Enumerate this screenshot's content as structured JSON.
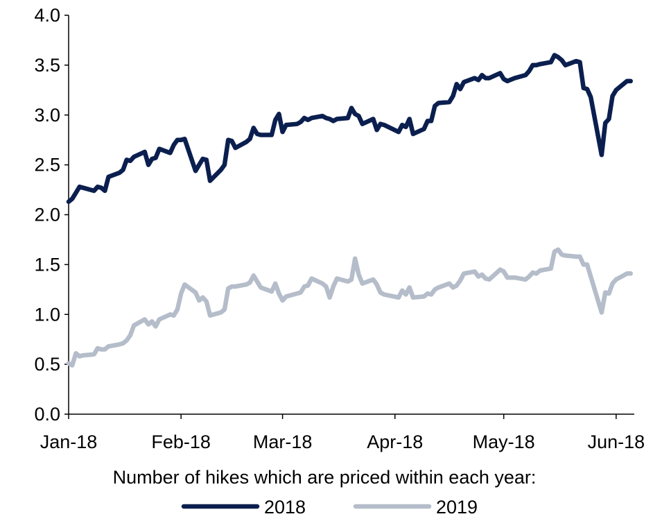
{
  "chart_data": {
    "type": "line",
    "title": "",
    "xlabel": "Number of hikes which are priced within each year:",
    "ylabel": "",
    "ylim": [
      0,
      4
    ],
    "yticks": [
      "0.0",
      "0.5",
      "1.0",
      "1.5",
      "2.0",
      "2.5",
      "3.0",
      "3.5",
      "4.0"
    ],
    "xlim": [
      "2018-01-01",
      "2018-06-06"
    ],
    "xticks": [
      {
        "date": "2018-01-01",
        "label": "Jan-18"
      },
      {
        "date": "2018-02-01",
        "label": "Feb-18"
      },
      {
        "date": "2018-03-01",
        "label": "Mar-18"
      },
      {
        "date": "2018-04-01",
        "label": "Apr-18"
      },
      {
        "date": "2018-05-01",
        "label": "May-18"
      },
      {
        "date": "2018-06-01",
        "label": "Jun-18"
      }
    ],
    "grid": false,
    "legend_position": "bottom",
    "series": [
      {
        "name": "2018",
        "color": "#0b1f4f",
        "points": [
          [
            "2018-01-01",
            2.13
          ],
          [
            "2018-01-02",
            2.16
          ],
          [
            "2018-01-03",
            2.22
          ],
          [
            "2018-01-04",
            2.28
          ],
          [
            "2018-01-05",
            2.27
          ],
          [
            "2018-01-08",
            2.24
          ],
          [
            "2018-01-09",
            2.28
          ],
          [
            "2018-01-10",
            2.27
          ],
          [
            "2018-01-11",
            2.24
          ],
          [
            "2018-01-12",
            2.38
          ],
          [
            "2018-01-15",
            2.42
          ],
          [
            "2018-01-16",
            2.45
          ],
          [
            "2018-01-17",
            2.55
          ],
          [
            "2018-01-18",
            2.54
          ],
          [
            "2018-01-19",
            2.58
          ],
          [
            "2018-01-22",
            2.63
          ],
          [
            "2018-01-23",
            2.5
          ],
          [
            "2018-01-24",
            2.56
          ],
          [
            "2018-01-25",
            2.57
          ],
          [
            "2018-01-26",
            2.66
          ],
          [
            "2018-01-29",
            2.62
          ],
          [
            "2018-01-30",
            2.7
          ],
          [
            "2018-01-31",
            2.75
          ],
          [
            "2018-02-01",
            2.75
          ],
          [
            "2018-02-02",
            2.76
          ],
          [
            "2018-02-05",
            2.44
          ],
          [
            "2018-02-06",
            2.5
          ],
          [
            "2018-02-07",
            2.56
          ],
          [
            "2018-02-08",
            2.55
          ],
          [
            "2018-02-09",
            2.34
          ],
          [
            "2018-02-12",
            2.45
          ],
          [
            "2018-02-13",
            2.5
          ],
          [
            "2018-02-14",
            2.75
          ],
          [
            "2018-02-15",
            2.74
          ],
          [
            "2018-02-16",
            2.67
          ],
          [
            "2018-02-19",
            2.73
          ],
          [
            "2018-02-20",
            2.76
          ],
          [
            "2018-02-21",
            2.87
          ],
          [
            "2018-02-22",
            2.81
          ],
          [
            "2018-02-23",
            2.8
          ],
          [
            "2018-02-26",
            2.8
          ],
          [
            "2018-02-27",
            2.95
          ],
          [
            "2018-02-28",
            3.01
          ],
          [
            "2018-03-01",
            2.83
          ],
          [
            "2018-03-02",
            2.9
          ],
          [
            "2018-03-05",
            2.91
          ],
          [
            "2018-03-06",
            2.93
          ],
          [
            "2018-03-07",
            2.97
          ],
          [
            "2018-03-08",
            2.95
          ],
          [
            "2018-03-09",
            2.97
          ],
          [
            "2018-03-12",
            2.99
          ],
          [
            "2018-03-13",
            2.97
          ],
          [
            "2018-03-14",
            2.96
          ],
          [
            "2018-03-15",
            2.94
          ],
          [
            "2018-03-16",
            2.96
          ],
          [
            "2018-03-19",
            2.97
          ],
          [
            "2018-03-20",
            3.07
          ],
          [
            "2018-03-21",
            3.01
          ],
          [
            "2018-03-22",
            2.99
          ],
          [
            "2018-03-23",
            2.91
          ],
          [
            "2018-03-26",
            2.96
          ],
          [
            "2018-03-27",
            2.85
          ],
          [
            "2018-03-28",
            2.91
          ],
          [
            "2018-03-29",
            2.9
          ],
          [
            "2018-04-02",
            2.83
          ],
          [
            "2018-04-03",
            2.9
          ],
          [
            "2018-04-04",
            2.88
          ],
          [
            "2018-04-05",
            2.96
          ],
          [
            "2018-04-06",
            2.81
          ],
          [
            "2018-04-09",
            2.86
          ],
          [
            "2018-04-10",
            2.94
          ],
          [
            "2018-04-11",
            2.94
          ],
          [
            "2018-04-12",
            3.09
          ],
          [
            "2018-04-13",
            3.12
          ],
          [
            "2018-04-16",
            3.13
          ],
          [
            "2018-04-17",
            3.19
          ],
          [
            "2018-04-18",
            3.31
          ],
          [
            "2018-04-19",
            3.26
          ],
          [
            "2018-04-20",
            3.33
          ],
          [
            "2018-04-23",
            3.37
          ],
          [
            "2018-04-24",
            3.35
          ],
          [
            "2018-04-25",
            3.4
          ],
          [
            "2018-04-26",
            3.37
          ],
          [
            "2018-04-27",
            3.37
          ],
          [
            "2018-04-30",
            3.42
          ],
          [
            "2018-05-01",
            3.36
          ],
          [
            "2018-05-02",
            3.34
          ],
          [
            "2018-05-04",
            3.37
          ],
          [
            "2018-05-07",
            3.4
          ],
          [
            "2018-05-08",
            3.44
          ],
          [
            "2018-05-09",
            3.5
          ],
          [
            "2018-05-10",
            3.5
          ],
          [
            "2018-05-11",
            3.51
          ],
          [
            "2018-05-14",
            3.53
          ],
          [
            "2018-05-15",
            3.6
          ],
          [
            "2018-05-16",
            3.58
          ],
          [
            "2018-05-17",
            3.55
          ],
          [
            "2018-05-18",
            3.5
          ],
          [
            "2018-05-21",
            3.54
          ],
          [
            "2018-05-22",
            3.53
          ],
          [
            "2018-05-23",
            3.27
          ],
          [
            "2018-05-24",
            3.26
          ],
          [
            "2018-05-25",
            3.18
          ],
          [
            "2018-05-28",
            2.6
          ],
          [
            "2018-05-29",
            2.92
          ],
          [
            "2018-05-30",
            2.96
          ],
          [
            "2018-05-31",
            3.19
          ],
          [
            "2018-06-01",
            3.25
          ],
          [
            "2018-06-04",
            3.34
          ],
          [
            "2018-06-05",
            3.34
          ]
        ]
      },
      {
        "name": "2019",
        "color": "#b5bdca",
        "points": [
          [
            "2018-01-01",
            0.51
          ],
          [
            "2018-01-02",
            0.49
          ],
          [
            "2018-01-03",
            0.61
          ],
          [
            "2018-01-04",
            0.58
          ],
          [
            "2018-01-05",
            0.59
          ],
          [
            "2018-01-08",
            0.6
          ],
          [
            "2018-01-09",
            0.66
          ],
          [
            "2018-01-10",
            0.65
          ],
          [
            "2018-01-11",
            0.65
          ],
          [
            "2018-01-12",
            0.68
          ],
          [
            "2018-01-15",
            0.7
          ],
          [
            "2018-01-16",
            0.71
          ],
          [
            "2018-01-17",
            0.74
          ],
          [
            "2018-01-18",
            0.79
          ],
          [
            "2018-01-19",
            0.89
          ],
          [
            "2018-01-22",
            0.95
          ],
          [
            "2018-01-23",
            0.9
          ],
          [
            "2018-01-24",
            0.93
          ],
          [
            "2018-01-25",
            0.88
          ],
          [
            "2018-01-26",
            0.95
          ],
          [
            "2018-01-29",
            1.0
          ],
          [
            "2018-01-30",
            0.99
          ],
          [
            "2018-01-31",
            1.05
          ],
          [
            "2018-02-01",
            1.21
          ],
          [
            "2018-02-02",
            1.3
          ],
          [
            "2018-02-05",
            1.22
          ],
          [
            "2018-02-06",
            1.14
          ],
          [
            "2018-02-07",
            1.17
          ],
          [
            "2018-02-08",
            1.13
          ],
          [
            "2018-02-09",
            0.99
          ],
          [
            "2018-02-12",
            1.02
          ],
          [
            "2018-02-13",
            1.05
          ],
          [
            "2018-02-14",
            1.26
          ],
          [
            "2018-02-15",
            1.28
          ],
          [
            "2018-02-16",
            1.28
          ],
          [
            "2018-02-19",
            1.3
          ],
          [
            "2018-02-20",
            1.32
          ],
          [
            "2018-02-21",
            1.39
          ],
          [
            "2018-02-22",
            1.33
          ],
          [
            "2018-02-23",
            1.27
          ],
          [
            "2018-02-26",
            1.23
          ],
          [
            "2018-02-27",
            1.31
          ],
          [
            "2018-02-28",
            1.21
          ],
          [
            "2018-03-01",
            1.14
          ],
          [
            "2018-03-02",
            1.18
          ],
          [
            "2018-03-05",
            1.21
          ],
          [
            "2018-03-06",
            1.22
          ],
          [
            "2018-03-07",
            1.28
          ],
          [
            "2018-03-08",
            1.29
          ],
          [
            "2018-03-09",
            1.36
          ],
          [
            "2018-03-12",
            1.31
          ],
          [
            "2018-03-13",
            1.28
          ],
          [
            "2018-03-14",
            1.17
          ],
          [
            "2018-03-15",
            1.28
          ],
          [
            "2018-03-16",
            1.36
          ],
          [
            "2018-03-19",
            1.33
          ],
          [
            "2018-03-20",
            1.35
          ],
          [
            "2018-03-21",
            1.56
          ],
          [
            "2018-03-22",
            1.4
          ],
          [
            "2018-03-23",
            1.31
          ],
          [
            "2018-03-26",
            1.35
          ],
          [
            "2018-03-27",
            1.3
          ],
          [
            "2018-03-28",
            1.22
          ],
          [
            "2018-03-29",
            1.2
          ],
          [
            "2018-04-02",
            1.17
          ],
          [
            "2018-04-03",
            1.24
          ],
          [
            "2018-04-04",
            1.2
          ],
          [
            "2018-04-05",
            1.27
          ],
          [
            "2018-04-06",
            1.17
          ],
          [
            "2018-04-09",
            1.18
          ],
          [
            "2018-04-10",
            1.21
          ],
          [
            "2018-04-11",
            1.2
          ],
          [
            "2018-04-12",
            1.25
          ],
          [
            "2018-04-13",
            1.27
          ],
          [
            "2018-04-16",
            1.31
          ],
          [
            "2018-04-17",
            1.27
          ],
          [
            "2018-04-18",
            1.29
          ],
          [
            "2018-04-19",
            1.34
          ],
          [
            "2018-04-20",
            1.41
          ],
          [
            "2018-04-23",
            1.43
          ],
          [
            "2018-04-24",
            1.38
          ],
          [
            "2018-04-25",
            1.4
          ],
          [
            "2018-04-26",
            1.36
          ],
          [
            "2018-04-27",
            1.35
          ],
          [
            "2018-04-30",
            1.45
          ],
          [
            "2018-05-01",
            1.43
          ],
          [
            "2018-05-02",
            1.37
          ],
          [
            "2018-05-04",
            1.37
          ],
          [
            "2018-05-07",
            1.35
          ],
          [
            "2018-05-08",
            1.38
          ],
          [
            "2018-05-09",
            1.42
          ],
          [
            "2018-05-10",
            1.41
          ],
          [
            "2018-05-11",
            1.44
          ],
          [
            "2018-05-14",
            1.46
          ],
          [
            "2018-05-15",
            1.63
          ],
          [
            "2018-05-16",
            1.65
          ],
          [
            "2018-05-17",
            1.6
          ],
          [
            "2018-05-18",
            1.59
          ],
          [
            "2018-05-21",
            1.58
          ],
          [
            "2018-05-22",
            1.58
          ],
          [
            "2018-05-23",
            1.5
          ],
          [
            "2018-05-24",
            1.5
          ],
          [
            "2018-05-25",
            1.38
          ],
          [
            "2018-05-28",
            1.02
          ],
          [
            "2018-05-29",
            1.22
          ],
          [
            "2018-05-30",
            1.21
          ],
          [
            "2018-05-31",
            1.31
          ],
          [
            "2018-06-01",
            1.35
          ],
          [
            "2018-06-04",
            1.41
          ],
          [
            "2018-06-05",
            1.41
          ]
        ]
      }
    ]
  }
}
